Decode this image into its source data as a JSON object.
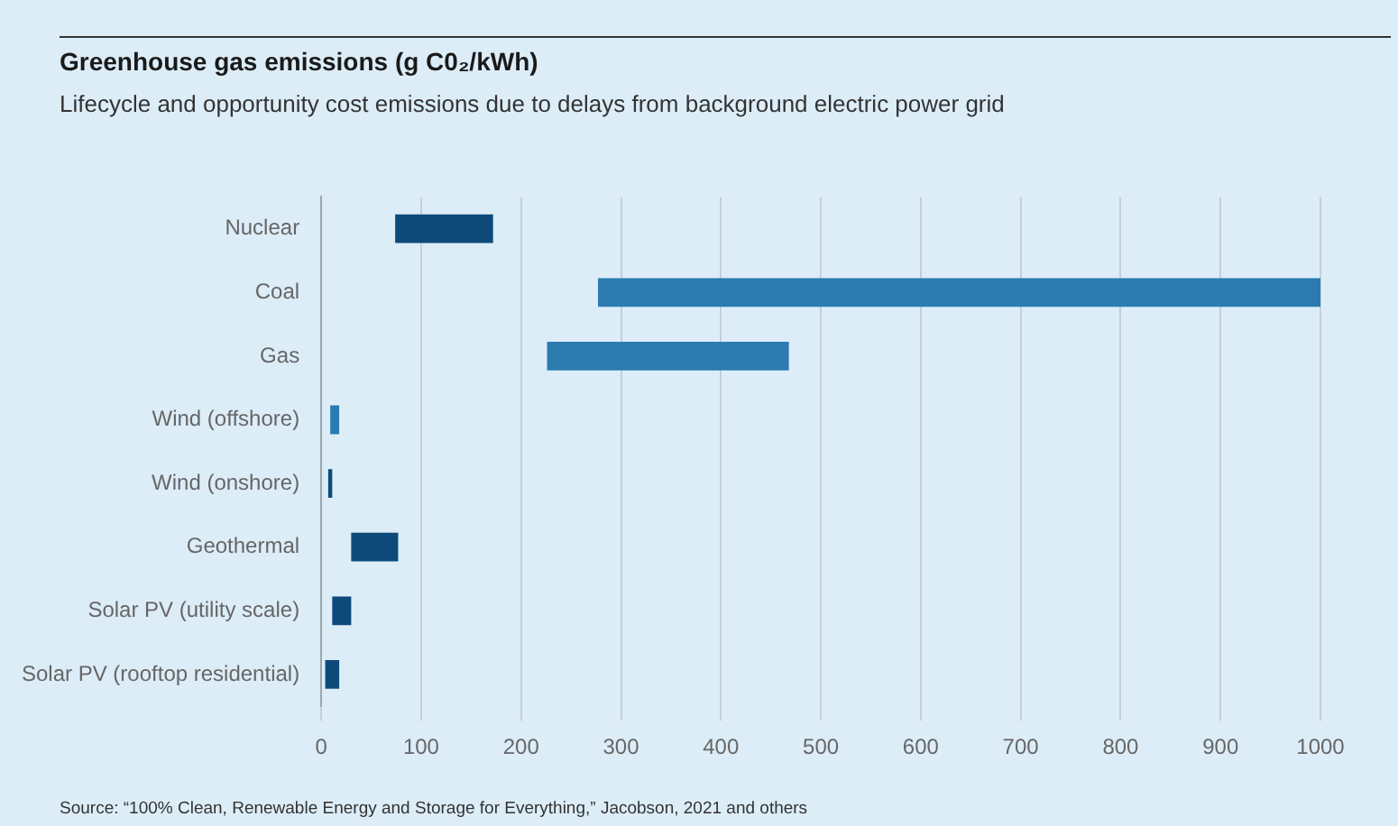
{
  "chart_data": {
    "type": "bar",
    "orientation": "horizontal",
    "title": "Greenhouse gas emissions (g C0₂/kWh)",
    "subtitle": "Lifecycle and opportunity cost emissions due to delays from background electric power grid",
    "categories": [
      "Nuclear",
      "Coal",
      "Gas",
      "Wind (offshore)",
      "Wind (onshore)",
      "Geothermal",
      "Solar PV (utility scale)",
      "Solar PV (rooftop residential)"
    ],
    "base": [
      74,
      277,
      226,
      9,
      7,
      30,
      11,
      4
    ],
    "values": [
      98,
      723,
      242,
      9,
      4,
      47,
      19,
      14
    ],
    "colors": [
      "#0d4a7a",
      "#2c7bb0",
      "#2c7bb0",
      "#2c7bb0",
      "#0d4a7a",
      "#0d4a7a",
      "#0d4a7a",
      "#0d4a7a"
    ],
    "xlim": [
      0,
      1000
    ],
    "xticks": [
      0,
      100,
      200,
      300,
      400,
      500,
      600,
      700,
      800,
      900,
      1000
    ],
    "grid": "x",
    "legend": false,
    "annotations": [
      "Source: “100% Clean, Renewable Energy and Storage for Everything,” Jacobson, 2021 and others"
    ]
  }
}
